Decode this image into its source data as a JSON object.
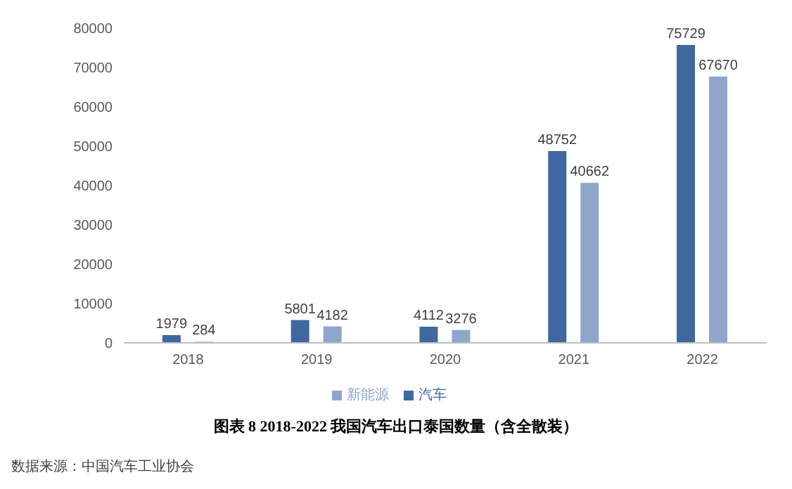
{
  "chart_data": {
    "type": "bar",
    "title": "图表 8 2018-2022 我国汽车出口泰国数量（含全散装）",
    "categories": [
      "2018",
      "2019",
      "2020",
      "2021",
      "2022"
    ],
    "series": [
      {
        "name": "汽车",
        "color": "#3f68a0",
        "values": [
          1979,
          5801,
          4112,
          48752,
          75729
        ]
      },
      {
        "name": "新能源",
        "color": "#8fa5cb",
        "values": [
          284,
          4182,
          3276,
          40662,
          67670
        ]
      }
    ],
    "ylim": [
      0,
      80000
    ],
    "yticks": [
      0,
      10000,
      20000,
      30000,
      40000,
      50000,
      60000,
      70000,
      80000
    ],
    "data_labels": true,
    "legend": "bottom",
    "grid": false,
    "annotations": [
      "数据来源：中国汽车工业协会"
    ]
  }
}
